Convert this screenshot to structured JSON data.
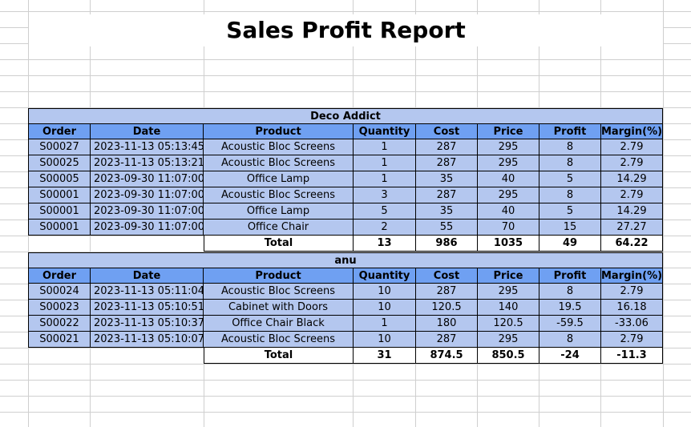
{
  "title": "Sales Profit Report",
  "columns": [
    "Order",
    "Date",
    "Product",
    "Quantity",
    "Cost",
    "Price",
    "Profit",
    "Margin(%)"
  ],
  "total_label": "Total",
  "groups": [
    {
      "name": "Deco Addict",
      "rows": [
        {
          "order": "S00027",
          "date": "2023-11-13 05:13:45",
          "product": "Acoustic Bloc Screens",
          "quantity": "1",
          "cost": "287",
          "price": "295",
          "profit": "8",
          "margin": "2.79"
        },
        {
          "order": "S00025",
          "date": "2023-11-13 05:13:21",
          "product": "Acoustic Bloc Screens",
          "quantity": "1",
          "cost": "287",
          "price": "295",
          "profit": "8",
          "margin": "2.79"
        },
        {
          "order": "S00005",
          "date": "2023-09-30 11:07:00",
          "product": "Office Lamp",
          "quantity": "1",
          "cost": "35",
          "price": "40",
          "profit": "5",
          "margin": "14.29"
        },
        {
          "order": "S00001",
          "date": "2023-09-30 11:07:00",
          "product": "Acoustic Bloc Screens",
          "quantity": "3",
          "cost": "287",
          "price": "295",
          "profit": "8",
          "margin": "2.79"
        },
        {
          "order": "S00001",
          "date": "2023-09-30 11:07:00",
          "product": "Office Lamp",
          "quantity": "5",
          "cost": "35",
          "price": "40",
          "profit": "5",
          "margin": "14.29"
        },
        {
          "order": "S00001",
          "date": "2023-09-30 11:07:00",
          "product": "Office Chair",
          "quantity": "2",
          "cost": "55",
          "price": "70",
          "profit": "15",
          "margin": "27.27"
        }
      ],
      "total": {
        "quantity": "13",
        "cost": "986",
        "price": "1035",
        "profit": "49",
        "margin": "64.22"
      }
    },
    {
      "name": "anu",
      "rows": [
        {
          "order": "S00024",
          "date": "2023-11-13 05:11:04",
          "product": "Acoustic Bloc Screens",
          "quantity": "10",
          "cost": "287",
          "price": "295",
          "profit": "8",
          "margin": "2.79"
        },
        {
          "order": "S00023",
          "date": "2023-11-13 05:10:51",
          "product": "Cabinet with Doors",
          "quantity": "10",
          "cost": "120.5",
          "price": "140",
          "profit": "19.5",
          "margin": "16.18"
        },
        {
          "order": "S00022",
          "date": "2023-11-13 05:10:37",
          "product": "Office Chair Black",
          "quantity": "1",
          "cost": "180",
          "price": "120.5",
          "profit": "-59.5",
          "margin": "-33.06"
        },
        {
          "order": "S00021",
          "date": "2023-11-13 05:10:07",
          "product": "Acoustic Bloc Screens",
          "quantity": "10",
          "cost": "287",
          "price": "295",
          "profit": "8",
          "margin": "2.79"
        }
      ],
      "total": {
        "quantity": "31",
        "cost": "874.5",
        "price": "850.5",
        "profit": "-24",
        "margin": "-11.3"
      }
    }
  ]
}
